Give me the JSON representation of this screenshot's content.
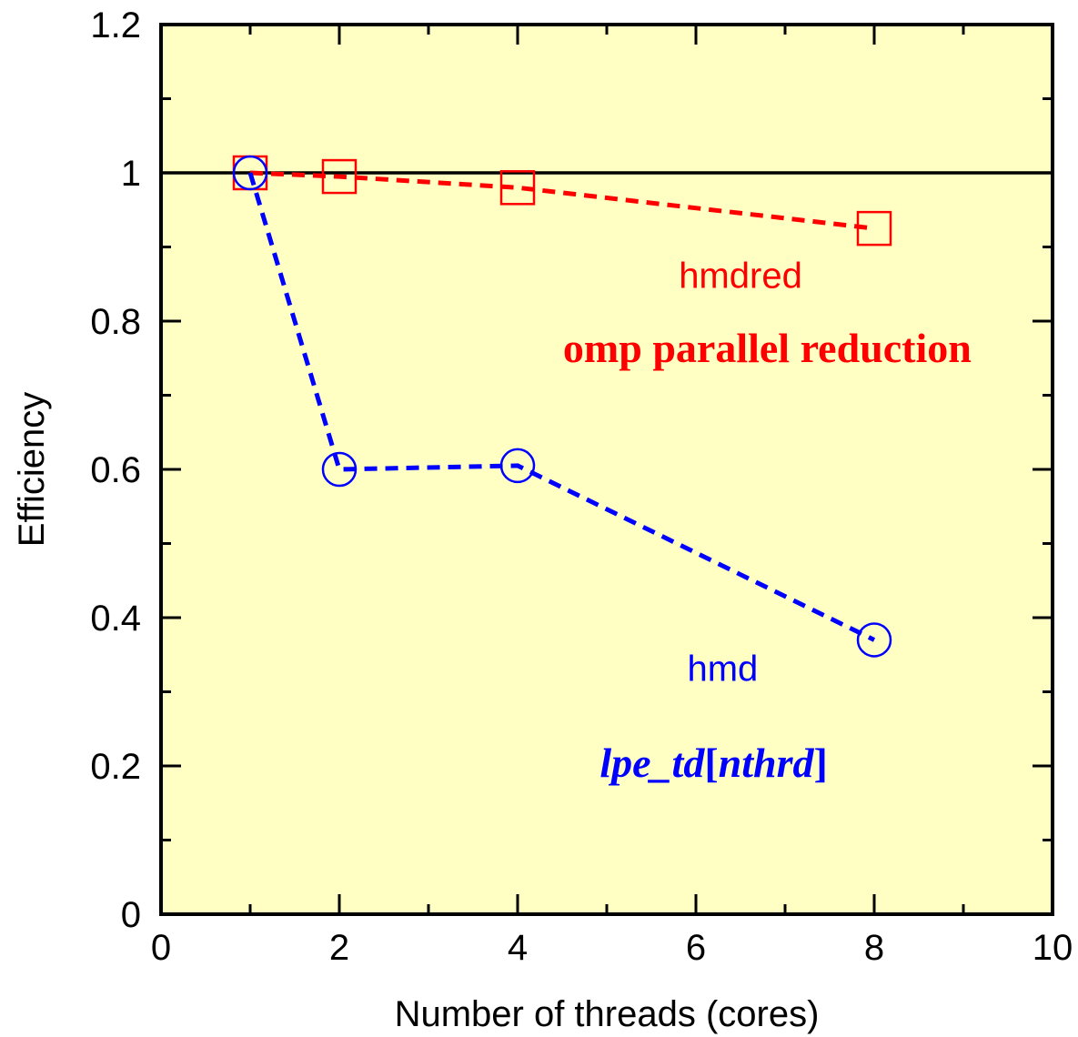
{
  "chart_data": {
    "type": "line",
    "title": "",
    "xlabel": "Number of threads (cores)",
    "ylabel": "Efficiency",
    "xlim": [
      0,
      10
    ],
    "ylim": [
      0,
      1.2
    ],
    "x_ticks": [
      "0",
      "2",
      "4",
      "6",
      "8",
      "10"
    ],
    "y_ticks": [
      "0",
      "0.2",
      "0.4",
      "0.6",
      "0.8",
      "1",
      "1.2"
    ],
    "background_color": "#ffffc4",
    "reference_line": {
      "y": 1,
      "color": "#000000"
    },
    "series": [
      {
        "name": "hmdred",
        "color": "#ff0000",
        "marker": "square",
        "line_style": "dashed",
        "x": [
          1,
          2,
          4,
          8
        ],
        "y": [
          1.0,
          0.995,
          0.98,
          0.925
        ]
      },
      {
        "name": "hmd",
        "color": "#0000ff",
        "marker": "circle",
        "line_style": "dashed",
        "x": [
          1,
          2,
          4,
          8
        ],
        "y": [
          1.0,
          0.6,
          0.605,
          0.37
        ]
      }
    ],
    "annotations": [
      {
        "text": "hmdred",
        "color": "#ff0000",
        "style": "sans",
        "x": 6.5,
        "y": 0.845
      },
      {
        "text": "omp parallel reduction",
        "color": "#ff0000",
        "style": "serif-bold",
        "x": 6.8,
        "y": 0.745
      },
      {
        "text": "hmd",
        "color": "#0000ff",
        "style": "sans",
        "x": 6.3,
        "y": 0.315
      },
      {
        "text_parts": [
          {
            "text": "lpe_td",
            "italic": true
          },
          {
            "text": "[",
            "italic": false
          },
          {
            "text": "nthrd",
            "italic": true
          },
          {
            "text": "]",
            "italic": false
          }
        ],
        "color": "#0000ff",
        "style": "serif-bold",
        "x": 6.2,
        "y": 0.185
      }
    ]
  }
}
